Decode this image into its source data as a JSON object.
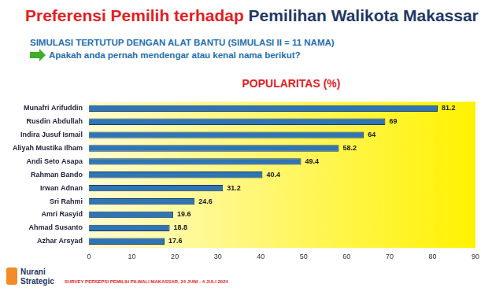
{
  "chart_data": {
    "type": "bar",
    "orientation": "horizontal",
    "title": "Preferensi Pemilih terhadap Pemilihan Walikota Makassar",
    "subtitle": [
      "SIMULASI TERTUTUP DENGAN ALAT BANTU (SIMULASI II = 11 NAMA)",
      "Apakah anda pernah mendengar atau kenal nama berikut?"
    ],
    "plot_title": "POPULARITAS (%)",
    "annotations": [
      "Nurani",
      "Strategic",
      "SURVEY PERSEPSI PEMILIH PILWALI MAKASSAR, 24 JUNI - 4 JULI 2024"
    ],
    "categories": [
      "Munafri Arifuddin",
      "Rusdin Abdullah",
      "Indira Jusuf Ismail",
      "Aliyah Mustika Ilham",
      "Andi Seto Asapa",
      "Rahman Bando",
      "Irwan Adnan",
      "Sri Rahmi",
      "Amri Rasyid",
      "Ahmad Susanto",
      "Azhar Arsyad"
    ],
    "values": [
      81.2,
      69,
      64,
      58.2,
      49.4,
      40.4,
      31.2,
      24.6,
      19.6,
      18.8,
      17.6
    ],
    "color": "#2e75b6",
    "xlim": [
      0,
      90
    ],
    "xticks": [
      0,
      10,
      20,
      30,
      40,
      50,
      60,
      70,
      80,
      90
    ],
    "grid": false,
    "data_labels": true
  }
}
